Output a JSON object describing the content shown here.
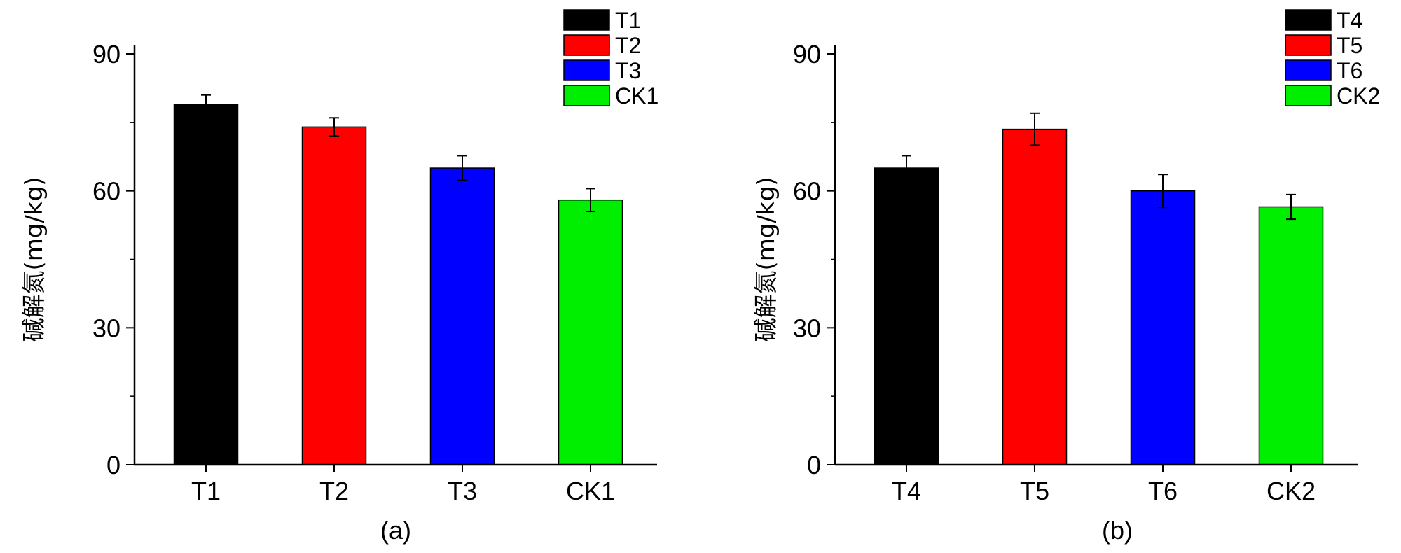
{
  "chart_data": [
    {
      "type": "bar",
      "panel_label": "(a)",
      "ylabel": "碱解氮(mg/kg)",
      "ylim": [
        0,
        90
      ],
      "yticks": [
        0,
        30,
        60,
        90
      ],
      "categories": [
        "T1",
        "T2",
        "T3",
        "CK1"
      ],
      "values": [
        79,
        74,
        65,
        58
      ],
      "errors": [
        2,
        2,
        2.7,
        2.5
      ],
      "colors": [
        "#000000",
        "#ff0000",
        "#0000ff",
        "#00ee00"
      ],
      "legend": [
        "T1",
        "T2",
        "T3",
        "CK1"
      ],
      "legend_position": "top-right",
      "grid": false
    },
    {
      "type": "bar",
      "panel_label": "(b)",
      "ylabel": "碱解氮(mg/kg)",
      "ylim": [
        0,
        90
      ],
      "yticks": [
        0,
        30,
        60,
        90
      ],
      "categories": [
        "T4",
        "T5",
        "T6",
        "CK2"
      ],
      "values": [
        65,
        73.5,
        60,
        56.5
      ],
      "errors": [
        2.7,
        3.5,
        3.6,
        2.7
      ],
      "colors": [
        "#000000",
        "#ff0000",
        "#0000ff",
        "#00ee00"
      ],
      "legend": [
        "T4",
        "T5",
        "T6",
        "CK2"
      ],
      "legend_position": "top-right",
      "grid": false
    }
  ]
}
